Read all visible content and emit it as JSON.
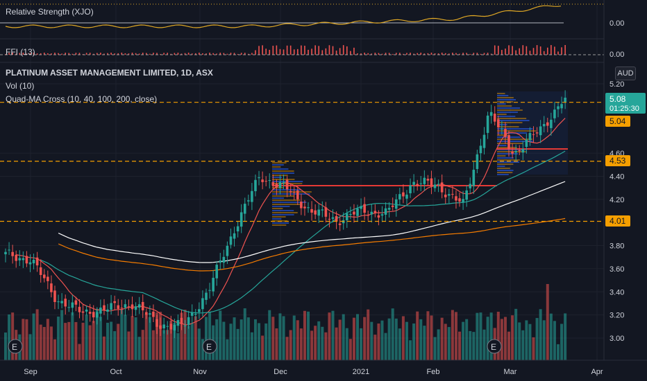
{
  "panes": {
    "rs_title": "Relative Strength (XJO)",
    "ffi_title": "FFI (13)",
    "rs_zero": "0.00",
    "ffi_zero": "0.00"
  },
  "header": {
    "symbol": "PLATINUM ASSET MANAGEMENT LIMITED, 1D, ASX",
    "vol": "Vol (10)",
    "ma": "Quad-MA Cross (10, 40, 100, 200, close)",
    "currency": "AUD"
  },
  "price_labels": {
    "last": "5.08",
    "countdown": "01:25:30",
    "level_504": "5.04",
    "level_453": "4.53",
    "level_401": "4.01"
  },
  "earnings": [
    "E",
    "E",
    "E"
  ],
  "colors": {
    "background": "#131722",
    "up": "#26a69a",
    "down": "#ef5350",
    "ma10": "#ef5350",
    "ma40": "#26a69a",
    "ma100": "#ffffff",
    "ma200": "#f57c00",
    "level": "#f59f00",
    "rs_line": "#e0a825",
    "profile": "#2962ff"
  },
  "chart_data": {
    "type": "candlestick",
    "title": "PLATINUM ASSET MANAGEMENT LIMITED, 1D, ASX",
    "currency": "AUD",
    "ylim": [
      2.88,
      5.3
    ],
    "y_ticks": [
      "5.20",
      "4.60",
      "4.40",
      "4.20",
      "3.80",
      "3.60",
      "3.40",
      "3.20",
      "3.00"
    ],
    "x_ticks": [
      "Sep",
      "Oct",
      "Nov",
      "Dec",
      "2021",
      "Feb",
      "Mar",
      "Apr"
    ],
    "horizontal_levels": [
      5.04,
      4.53,
      4.01
    ],
    "last_price": 5.08,
    "key_closes": [
      {
        "date": "late Aug",
        "close": 3.72
      },
      {
        "date": "early Sep",
        "close": 3.68
      },
      {
        "date": "mid Sep",
        "close": 3.34
      },
      {
        "date": "late Sep",
        "close": 3.22
      },
      {
        "date": "early Oct",
        "close": 3.25
      },
      {
        "date": "mid Oct",
        "close": 3.3
      },
      {
        "date": "late Oct",
        "close": 3.12
      },
      {
        "date": "early Nov",
        "close": 3.1
      },
      {
        "date": "mid Nov",
        "close": 3.42
      },
      {
        "date": "late Nov",
        "close": 3.95
      },
      {
        "date": "early Dec",
        "close": 4.4
      },
      {
        "date": "mid Dec",
        "close": 4.3
      },
      {
        "date": "late Dec",
        "close": 4.1
      },
      {
        "date": "early Jan",
        "close": 4.02
      },
      {
        "date": "mid Jan",
        "close": 4.1
      },
      {
        "date": "late Jan",
        "close": 4.08
      },
      {
        "date": "early Feb",
        "close": 4.35
      },
      {
        "date": "mid Feb",
        "close": 4.32
      },
      {
        "date": "late Feb",
        "close": 4.15
      },
      {
        "date": "end Feb",
        "close": 4.95
      },
      {
        "date": "early Mar",
        "close": 4.6
      },
      {
        "date": "mid Mar",
        "close": 4.8
      },
      {
        "date": "late Mar",
        "close": 5.08
      }
    ],
    "moving_averages": [
      "10",
      "40",
      "100",
      "200"
    ]
  }
}
